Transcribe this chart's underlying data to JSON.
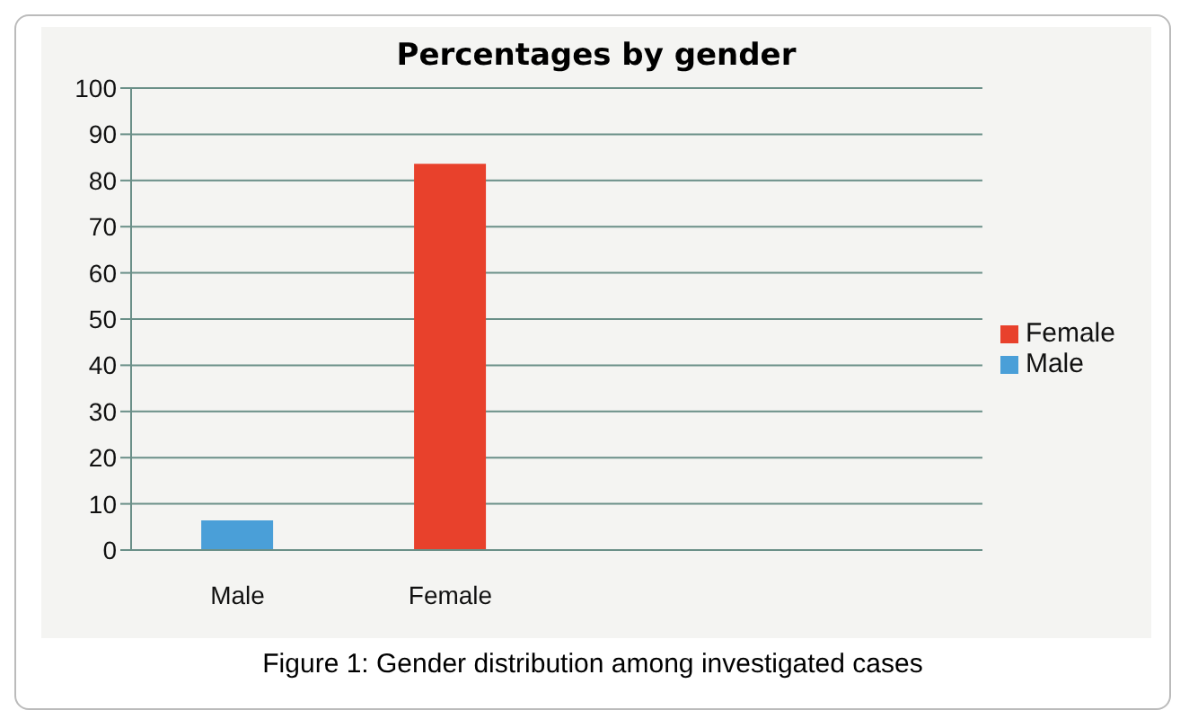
{
  "chart_data": {
    "type": "bar",
    "title": "Percentages by gender",
    "categories": [
      "Male",
      "Female",
      null,
      null
    ],
    "series": [
      {
        "name": "Male",
        "color": "#4a9fd8",
        "values": [
          6.4,
          null,
          null,
          null
        ]
      },
      {
        "name": "Female",
        "color": "#e8412c",
        "values": [
          null,
          83.6,
          null,
          null
        ]
      }
    ],
    "stacked": true,
    "ylim": [
      0,
      100
    ],
    "yticks": [
      0,
      10,
      20,
      30,
      40,
      50,
      60,
      70,
      80,
      90,
      100
    ],
    "grid": "y",
    "legend": "right",
    "annotations": [
      "Figure 1: Gender distribution among investigated cases"
    ]
  }
}
